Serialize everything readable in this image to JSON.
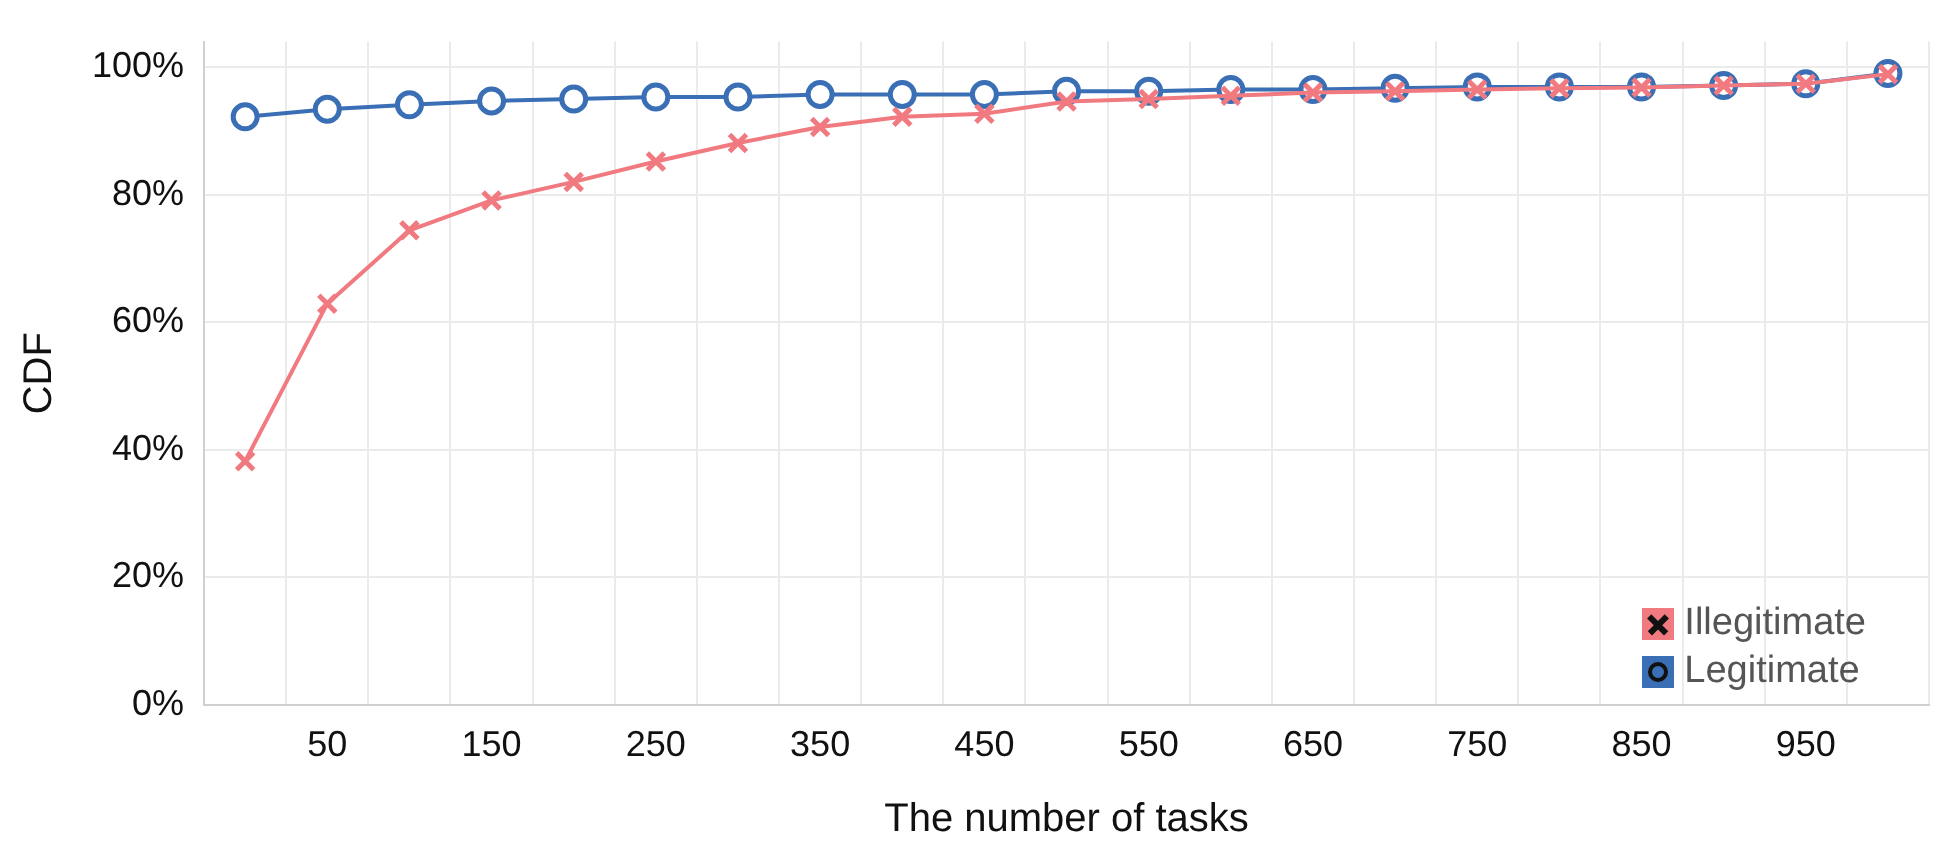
{
  "chart_data": {
    "type": "line",
    "xlabel": "The number of tasks",
    "ylabel": "CDF",
    "categories": [
      null,
      "50",
      null,
      "150",
      null,
      "250",
      null,
      "350",
      null,
      "450",
      null,
      "550",
      null,
      "650",
      null,
      "750",
      null,
      "850",
      null,
      "950",
      null
    ],
    "series": [
      {
        "name": "Illegitimate",
        "color": "#f07a80",
        "marker": "cross",
        "values": [
          38.2,
          62.9,
          74.4,
          79.1,
          82.0,
          85.2,
          88.1,
          90.6,
          92.2,
          92.7,
          94.6,
          95.0,
          95.5,
          96.0,
          96.2,
          96.5,
          96.7,
          96.8,
          97.1,
          97.4,
          98.9
        ]
      },
      {
        "name": "Legitimate",
        "color": "#3a6fb5",
        "marker": "circle",
        "values": [
          92.2,
          93.4,
          94.1,
          94.7,
          95.0,
          95.3,
          95.3,
          95.7,
          95.7,
          95.7,
          96.2,
          96.2,
          96.5,
          96.5,
          96.7,
          96.9,
          96.9,
          96.9,
          97.1,
          97.4,
          99.0
        ]
      }
    ],
    "ylim": [
      0,
      104
    ],
    "yticks": [
      {
        "value": 0,
        "label": "0%"
      },
      {
        "value": 20,
        "label": "20%"
      },
      {
        "value": 40,
        "label": "40%"
      },
      {
        "value": 60,
        "label": "60%"
      },
      {
        "value": 80,
        "label": "80%"
      },
      {
        "value": 100,
        "label": "100%"
      }
    ],
    "grid": true,
    "legend": "bottom right"
  }
}
